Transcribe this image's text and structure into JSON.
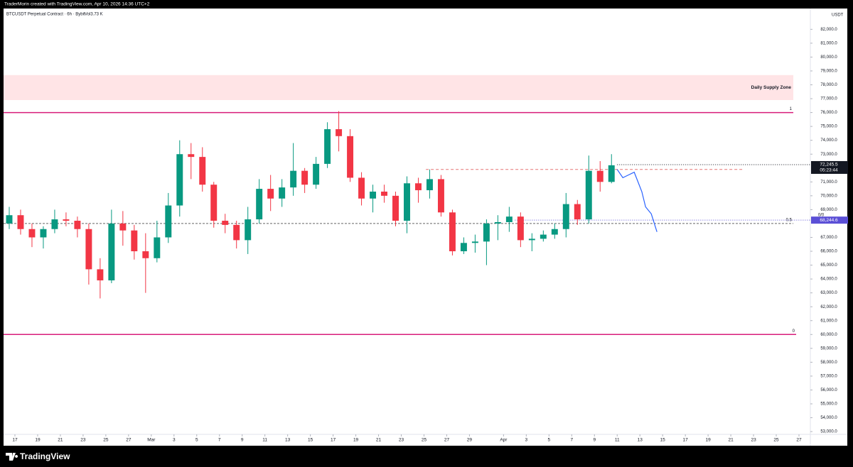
{
  "header": "TraderMorin created with TradingView.com, Apr 10, 2026 14:36 UTC+2",
  "footer": "TradingView",
  "chart_data": {
    "type": "candlestick",
    "title": "BTCUSDT Perpetual Contract · 6h · Bybit",
    "volume_label": "Vol3.73 K",
    "currency": "USDT",
    "up_color": "#089981",
    "down_color": "#f23645",
    "x": [
      "2026-02-16",
      "2026-02-17",
      "2026-02-18",
      "2026-02-19",
      "2026-02-20",
      "2026-02-21",
      "2026-02-22",
      "2026-02-23",
      "2026-02-24",
      "2026-02-25",
      "2026-02-26",
      "2026-02-27",
      "2026-02-28",
      "2026-03-01",
      "2026-03-02",
      "2026-03-03",
      "2026-03-04",
      "2026-03-05",
      "2026-03-06",
      "2026-03-07",
      "2026-03-08",
      "2026-03-09",
      "2026-03-10",
      "2026-03-11",
      "2026-03-12",
      "2026-03-13",
      "2026-03-14",
      "2026-03-15",
      "2026-03-16",
      "2026-03-17",
      "2026-03-18",
      "2026-03-19",
      "2026-03-20",
      "2026-03-21",
      "2026-03-22",
      "2026-03-23",
      "2026-03-24",
      "2026-03-25",
      "2026-03-26",
      "2026-03-27",
      "2026-03-28",
      "2026-03-29",
      "2026-03-30",
      "2026-03-31",
      "2026-04-01",
      "2026-04-02",
      "2026-04-03",
      "2026-04-04",
      "2026-04-05",
      "2026-04-06",
      "2026-04-07",
      "2026-04-08",
      "2026-04-09",
      "2026-04-10"
    ],
    "open": [
      68000,
      68600,
      67600,
      67000,
      67600,
      68300,
      68200,
      67600,
      64700,
      63900,
      68000,
      67500,
      66000,
      65500,
      67000,
      69300,
      73000,
      72800,
      70800,
      68200,
      67900,
      66800,
      68300,
      70500,
      69800,
      70600,
      71800,
      70800,
      72300,
      74800,
      74300,
      71300,
      69800,
      70300,
      70000,
      68200,
      70900,
      70400,
      71200,
      68800,
      66000,
      66600,
      66700,
      68000,
      68100,
      68500,
      66800,
      66900,
      67200,
      67600,
      69400,
      68300,
      71800,
      71000
    ],
    "high": [
      69200,
      69000,
      68000,
      67800,
      69000,
      68800,
      68500,
      68000,
      65500,
      69000,
      68900,
      67900,
      67300,
      68200,
      70200,
      74000,
      73800,
      73500,
      71000,
      68700,
      68200,
      69200,
      71200,
      71500,
      71200,
      73800,
      72000,
      72800,
      75300,
      76100,
      74800,
      71700,
      70800,
      70800,
      70300,
      71400,
      71300,
      71900,
      71500,
      69000,
      67000,
      67200,
      68300,
      68600,
      69200,
      68800,
      67300,
      67500,
      68000,
      70200,
      69700,
      72900,
      72500,
      73000
    ],
    "low": [
      67600,
      67200,
      66300,
      66200,
      67300,
      67800,
      67000,
      63600,
      62600,
      63700,
      66400,
      65400,
      63000,
      65200,
      66600,
      68500,
      71200,
      70300,
      67700,
      67300,
      66200,
      65800,
      68000,
      68900,
      69200,
      70000,
      70200,
      70500,
      72000,
      73200,
      71000,
      69300,
      68800,
      69500,
      67800,
      67300,
      69500,
      69800,
      68500,
      65700,
      65800,
      65900,
      65000,
      66800,
      67400,
      66300,
      66000,
      66700,
      66900,
      67000,
      67900,
      68000,
      70300,
      70900
    ],
    "close": [
      68600,
      67600,
      67000,
      67600,
      68300,
      68200,
      67600,
      64700,
      63900,
      68000,
      67500,
      66000,
      65500,
      67000,
      69300,
      73000,
      72800,
      70800,
      68200,
      67900,
      66800,
      68300,
      70500,
      69800,
      70600,
      71800,
      70800,
      72300,
      74800,
      74300,
      71300,
      69800,
      70300,
      70000,
      68200,
      70900,
      70400,
      71200,
      68800,
      66000,
      66600,
      66700,
      68000,
      68100,
      68500,
      66800,
      66900,
      67200,
      67600,
      69400,
      68300,
      71800,
      71000,
      72200
    ],
    "xlim": [
      "2026-02-16",
      "2026-04-28"
    ],
    "xticks": [
      {
        "value": "2026-02-17",
        "label": "17"
      },
      {
        "value": "2026-02-19",
        "label": "19"
      },
      {
        "value": "2026-02-21",
        "label": "21"
      },
      {
        "value": "2026-02-23",
        "label": "23"
      },
      {
        "value": "2026-02-25",
        "label": "25"
      },
      {
        "value": "2026-02-27",
        "label": "27"
      },
      {
        "value": "2026-03-01",
        "label": "Mar"
      },
      {
        "value": "2026-03-03",
        "label": "3"
      },
      {
        "value": "2026-03-05",
        "label": "5"
      },
      {
        "value": "2026-03-07",
        "label": "7"
      },
      {
        "value": "2026-03-09",
        "label": "9"
      },
      {
        "value": "2026-03-11",
        "label": "11"
      },
      {
        "value": "2026-03-13",
        "label": "13"
      },
      {
        "value": "2026-03-15",
        "label": "15"
      },
      {
        "value": "2026-03-17",
        "label": "17"
      },
      {
        "value": "2026-03-19",
        "label": "19"
      },
      {
        "value": "2026-03-21",
        "label": "21"
      },
      {
        "value": "2026-03-23",
        "label": "23"
      },
      {
        "value": "2026-03-25",
        "label": "25"
      },
      {
        "value": "2026-03-27",
        "label": "27"
      },
      {
        "value": "2026-03-29",
        "label": "29"
      },
      {
        "value": "2026-04-01",
        "label": "Apr"
      },
      {
        "value": "2026-04-03",
        "label": "3"
      },
      {
        "value": "2026-04-05",
        "label": "5"
      },
      {
        "value": "2026-04-07",
        "label": "7"
      },
      {
        "value": "2026-04-09",
        "label": "9"
      },
      {
        "value": "2026-04-11",
        "label": "11"
      },
      {
        "value": "2026-04-13",
        "label": "13"
      },
      {
        "value": "2026-04-15",
        "label": "15"
      },
      {
        "value": "2026-04-17",
        "label": "17"
      },
      {
        "value": "2026-04-19",
        "label": "19"
      },
      {
        "value": "2026-04-21",
        "label": "21"
      },
      {
        "value": "2026-04-23",
        "label": "23"
      },
      {
        "value": "2026-04-25",
        "label": "25"
      },
      {
        "value": "2026-04-27",
        "label": "27"
      }
    ],
    "ylim": [
      52800,
      83500
    ],
    "yticks": [
      {
        "value": 82000,
        "label": "82,000.0"
      },
      {
        "value": 81000,
        "label": "81,000.0"
      },
      {
        "value": 80000,
        "label": "80,000.0"
      },
      {
        "value": 79000,
        "label": "79,000.0"
      },
      {
        "value": 78000,
        "label": "78,000.0"
      },
      {
        "value": 77000,
        "label": "77,000.0"
      },
      {
        "value": 76000,
        "label": "76,000.0"
      },
      {
        "value": 75000,
        "label": "75,000.0"
      },
      {
        "value": 74000,
        "label": "74,000.0"
      },
      {
        "value": 73000,
        "label": "73,000.0"
      },
      {
        "value": 71000,
        "label": "71,000.0"
      },
      {
        "value": 70000,
        "label": "70,000.0"
      },
      {
        "value": 69000,
        "label": "69,000.0"
      },
      {
        "value": 67000,
        "label": "67,000.0"
      },
      {
        "value": 66000,
        "label": "66,000.0"
      },
      {
        "value": 65000,
        "label": "65,000.0"
      },
      {
        "value": 64000,
        "label": "64,000.0"
      },
      {
        "value": 63000,
        "label": "63,000.0"
      },
      {
        "value": 62000,
        "label": "62,000.0"
      },
      {
        "value": 61000,
        "label": "61,000.0"
      },
      {
        "value": 60000,
        "label": "60,000.0"
      },
      {
        "value": 59000,
        "label": "59,000.0"
      },
      {
        "value": 58000,
        "label": "58,000.0"
      },
      {
        "value": 57000,
        "label": "57,000.0"
      },
      {
        "value": 56000,
        "label": "56,000.0"
      },
      {
        "value": 55000,
        "label": "55,000.0"
      },
      {
        "value": 54000,
        "label": "54,000.0"
      },
      {
        "value": 53000,
        "label": "53,000.0"
      }
    ],
    "supply_zone": {
      "label": "Daily Supply Zone",
      "low": 76900,
      "high": 78700,
      "end": "2026-04-26T12:00",
      "color": "#ffe4e6"
    },
    "levels": [
      {
        "label": "1",
        "value": 76000,
        "color": "#d81b7a",
        "style": "solid",
        "end": "2026-04-26T12:00"
      },
      {
        "label": "0.5",
        "value": 68000,
        "color": "#666666",
        "style": "dashed",
        "end": "2026-04-26T12:00"
      },
      {
        "label": "0",
        "value": 60000,
        "color": "#d81b7a",
        "style": "solid",
        "end": "2026-04-26T18:00"
      }
    ],
    "resistance": {
      "value": 71900,
      "start": "2026-03-25T04:00",
      "end": "2026-04-22T00:00",
      "color": "#e57373"
    },
    "last_price": {
      "value": 72245.5,
      "label": "72,245.5",
      "countdown": "05:23:44",
      "color": "#131722"
    },
    "marker": {
      "value": 68244.6,
      "label": "68,244.6",
      "tag": "0/0",
      "start": "2026-04-02T00:00",
      "color": "#5b4fd6"
    },
    "projection": {
      "color": "#2962ff",
      "x": [
        "2026-04-11T00:00",
        "2026-04-11T12:00",
        "2026-04-12T00:00",
        "2026-04-12T12:00",
        "2026-04-13T04:00",
        "2026-04-13T12:00",
        "2026-04-14T00:00",
        "2026-04-14T12:00"
      ],
      "values": [
        71900,
        71300,
        71500,
        71700,
        70300,
        69200,
        68700,
        67400
      ]
    }
  }
}
